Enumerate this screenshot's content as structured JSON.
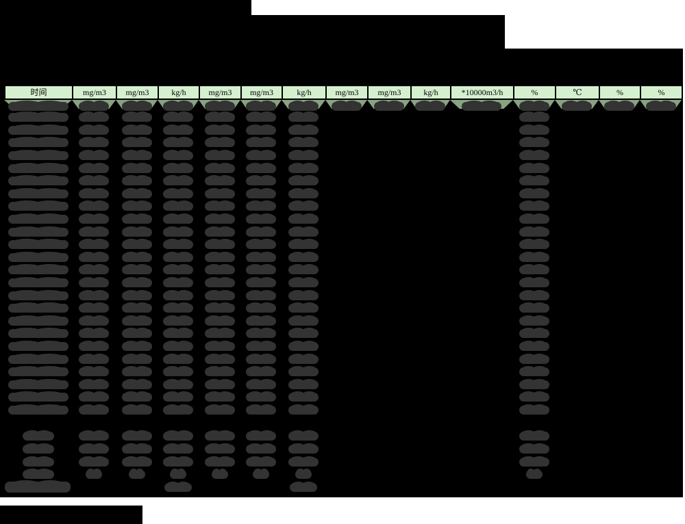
{
  "page": {
    "background_color": "#ffffff",
    "redaction_color": "#000000",
    "blob_color": "#333333"
  },
  "table": {
    "header_units": [
      "时间",
      "mg/m3",
      "mg/m3",
      "kg/h",
      "mg/m3",
      "mg/m3",
      "kg/h",
      "mg/m3",
      "mg/m3",
      "kg/h",
      "*10000m3/h",
      "%",
      "℃",
      "%",
      "%"
    ],
    "header_bg_color": "#d5f0cf",
    "first_row_band_color": "#87a381",
    "border_color": "#000000",
    "column_count": 15
  },
  "redaction": {
    "title_block_count": 3,
    "main_data_row_count": 25,
    "first_row_value_columns": [
      1,
      2,
      3,
      4,
      5,
      6,
      7,
      8,
      9,
      10,
      11,
      12,
      13,
      14,
      15
    ],
    "main_row_value_columns": [
      1,
      2,
      3,
      4,
      5,
      6,
      7,
      12
    ],
    "summary_row_count": 4,
    "summary_row_value_columns": [
      1,
      2,
      3,
      4,
      5,
      6,
      7,
      12
    ],
    "total_row_value_columns": [
      1,
      4,
      7
    ],
    "footer_bar_present": true
  }
}
